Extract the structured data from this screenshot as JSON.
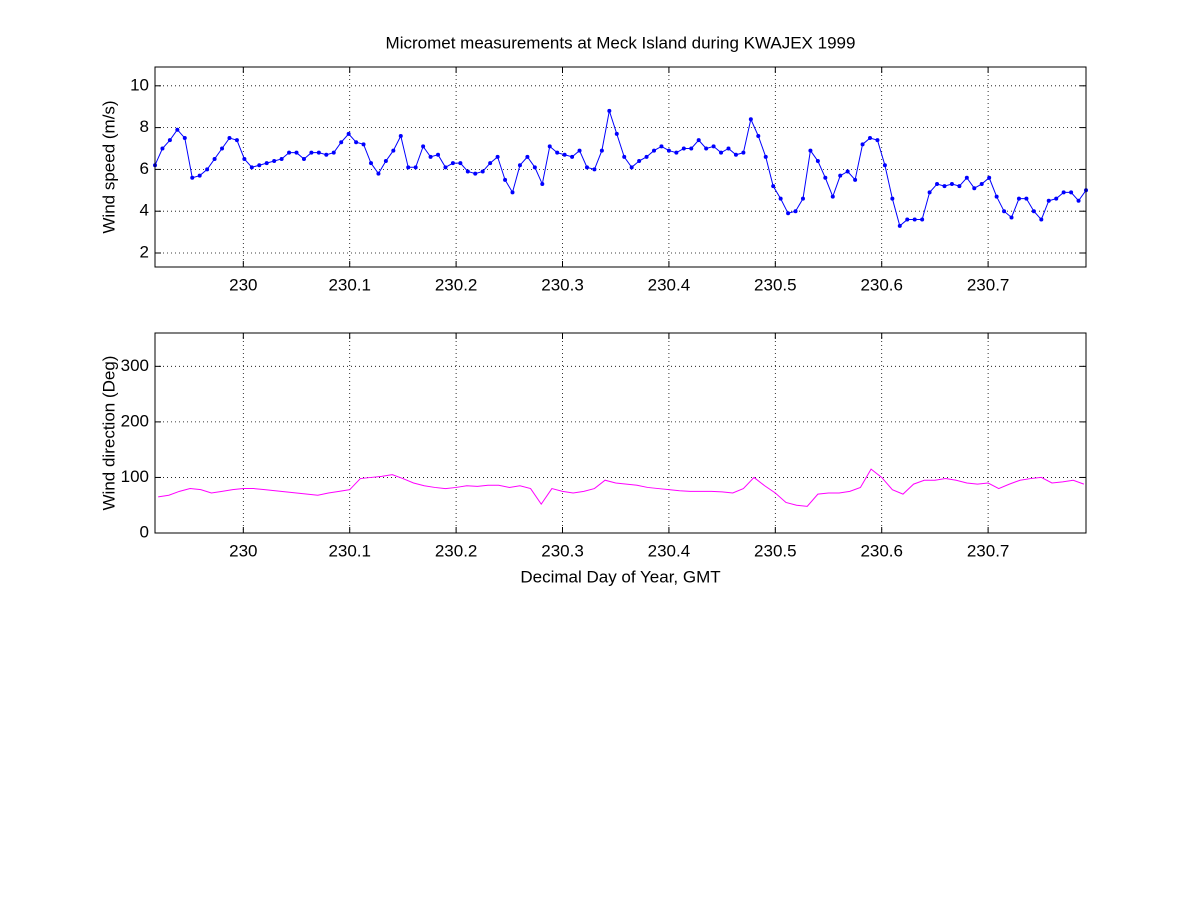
{
  "chart_data": [
    {
      "type": "line",
      "title": "Micromet measurements at Meck Island during KWAJEX 1999",
      "ylabel": "Wind speed (m/s)",
      "color": "#0000ff",
      "marker": true,
      "grid": true,
      "xlim": [
        229.917,
        230.792
      ],
      "xticks": [
        230,
        230.1,
        230.2,
        230.3,
        230.4,
        230.5,
        230.6,
        230.7
      ],
      "ylim": [
        1.33,
        10.9
      ],
      "yticks": [
        2,
        4,
        6,
        8,
        10
      ],
      "x": [
        229.917,
        229.924,
        229.931,
        229.938,
        229.945,
        229.952,
        229.959,
        229.966,
        229.973,
        229.98,
        229.987,
        229.994,
        230.001,
        230.008,
        230.015,
        230.022,
        230.029,
        230.036,
        230.043,
        230.05,
        230.057,
        230.064,
        230.071,
        230.078,
        230.085,
        230.092,
        230.099,
        230.106,
        230.113,
        230.12,
        230.127,
        230.134,
        230.141,
        230.148,
        230.155,
        230.162,
        230.169,
        230.176,
        230.183,
        230.19,
        230.197,
        230.204,
        230.211,
        230.218,
        230.225,
        230.232,
        230.239,
        230.246,
        230.253,
        230.26,
        230.267,
        230.274,
        230.281,
        230.288,
        230.295,
        230.302,
        230.309,
        230.316,
        230.323,
        230.33,
        230.337,
        230.344,
        230.351,
        230.358,
        230.365,
        230.372,
        230.379,
        230.386,
        230.393,
        230.4,
        230.407,
        230.414,
        230.421,
        230.428,
        230.435,
        230.442,
        230.449,
        230.456,
        230.463,
        230.47,
        230.477,
        230.484,
        230.491,
        230.498,
        230.505,
        230.512,
        230.519,
        230.526,
        230.533,
        230.54,
        230.547,
        230.554,
        230.561,
        230.568,
        230.575,
        230.582,
        230.589,
        230.596,
        230.603,
        230.61,
        230.617,
        230.624,
        230.631,
        230.638,
        230.645,
        230.652,
        230.659,
        230.666,
        230.673,
        230.68,
        230.687,
        230.694,
        230.701,
        230.708,
        230.715,
        230.722,
        230.729,
        230.736,
        230.743,
        230.75,
        230.757,
        230.764,
        230.771,
        230.778,
        230.785,
        230.792
      ],
      "values": [
        6.2,
        7.0,
        7.4,
        7.9,
        7.5,
        5.6,
        5.7,
        6.0,
        6.5,
        7.0,
        7.5,
        7.4,
        6.5,
        6.1,
        6.2,
        6.3,
        6.4,
        6.5,
        6.8,
        6.8,
        6.5,
        6.8,
        6.8,
        6.7,
        6.8,
        7.3,
        7.7,
        7.3,
        7.2,
        6.3,
        5.8,
        6.4,
        6.9,
        7.6,
        6.1,
        6.1,
        7.1,
        6.6,
        6.7,
        6.1,
        6.3,
        6.3,
        5.9,
        5.8,
        5.9,
        6.3,
        6.6,
        5.5,
        4.9,
        6.2,
        6.6,
        6.1,
        5.3,
        7.1,
        6.8,
        6.7,
        6.6,
        6.9,
        6.1,
        6.0,
        6.9,
        8.8,
        7.7,
        6.6,
        6.1,
        6.4,
        6.6,
        6.9,
        7.1,
        6.9,
        6.8,
        7.0,
        7.0,
        7.4,
        7.0,
        7.1,
        6.8,
        7.0,
        6.7,
        6.8,
        8.4,
        7.6,
        6.6,
        5.2,
        4.6,
        3.9,
        4.0,
        4.6,
        6.9,
        6.4,
        5.6,
        4.7,
        5.7,
        5.9,
        5.5,
        7.2,
        7.5,
        7.4,
        6.2,
        4.6,
        3.3,
        3.6,
        3.6,
        3.6,
        4.9,
        5.3,
        5.2,
        5.3,
        5.2,
        5.6,
        5.1,
        5.3,
        5.6,
        4.7,
        4.0,
        3.7,
        4.6,
        4.6,
        4.0,
        3.6,
        4.5,
        4.6,
        4.9,
        4.9,
        4.5,
        5.0
      ]
    },
    {
      "type": "line",
      "ylabel": "Wind direction (Deg)",
      "xlabel": "Decimal Day of Year, GMT",
      "color": "#ff00ff",
      "marker": false,
      "grid": true,
      "xlim": [
        229.917,
        230.792
      ],
      "xticks": [
        230,
        230.1,
        230.2,
        230.3,
        230.4,
        230.5,
        230.6,
        230.7
      ],
      "ylim": [
        0,
        360
      ],
      "yticks": [
        0,
        100,
        200,
        300
      ],
      "x": [
        229.92,
        229.93,
        229.94,
        229.95,
        229.96,
        229.97,
        229.98,
        229.99,
        230.0,
        230.01,
        230.02,
        230.03,
        230.04,
        230.05,
        230.06,
        230.07,
        230.08,
        230.09,
        230.1,
        230.11,
        230.12,
        230.13,
        230.14,
        230.15,
        230.16,
        230.17,
        230.18,
        230.19,
        230.2,
        230.21,
        230.22,
        230.23,
        230.24,
        230.25,
        230.26,
        230.27,
        230.28,
        230.29,
        230.3,
        230.31,
        230.32,
        230.33,
        230.34,
        230.35,
        230.36,
        230.37,
        230.38,
        230.39,
        230.4,
        230.41,
        230.42,
        230.43,
        230.44,
        230.45,
        230.46,
        230.47,
        230.48,
        230.49,
        230.5,
        230.51,
        230.52,
        230.53,
        230.54,
        230.55,
        230.56,
        230.57,
        230.58,
        230.59,
        230.6,
        230.61,
        230.62,
        230.63,
        230.64,
        230.65,
        230.66,
        230.67,
        230.68,
        230.69,
        230.7,
        230.71,
        230.72,
        230.73,
        230.74,
        230.75,
        230.76,
        230.77,
        230.78,
        230.79
      ],
      "values": [
        65,
        68,
        75,
        80,
        78,
        72,
        75,
        78,
        80,
        80,
        78,
        76,
        74,
        72,
        70,
        68,
        72,
        75,
        78,
        98,
        100,
        102,
        105,
        98,
        90,
        85,
        82,
        80,
        82,
        85,
        84,
        86,
        86,
        82,
        85,
        80,
        52,
        80,
        75,
        72,
        75,
        80,
        95,
        90,
        88,
        86,
        82,
        80,
        78,
        76,
        75,
        75,
        75,
        74,
        72,
        80,
        100,
        85,
        72,
        55,
        50,
        48,
        70,
        72,
        72,
        75,
        82,
        115,
        100,
        78,
        70,
        88,
        95,
        95,
        98,
        95,
        90,
        88,
        90,
        80,
        88,
        95,
        98,
        100,
        90,
        92,
        95,
        88
      ]
    }
  ]
}
